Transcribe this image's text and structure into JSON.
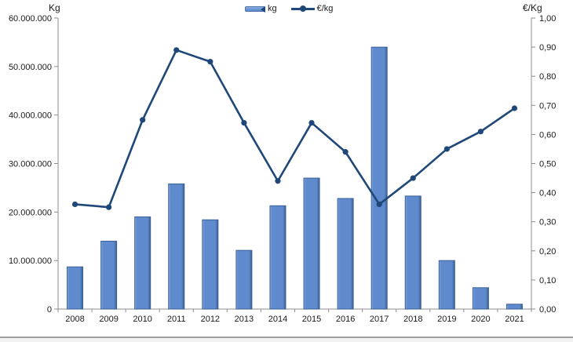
{
  "chart": {
    "left_axis_title": "Kg",
    "right_axis_title": "€/Kg",
    "legend": [
      {
        "label": "kg",
        "icon": "bar-series-swatch-icon"
      },
      {
        "label": "€/kg",
        "icon": "line-series-swatch-icon"
      }
    ],
    "left_tick_labels": [
      "0",
      "10.000.000",
      "20.000.000",
      "30.000.000",
      "40.000.000",
      "50.000.000",
      "60.000.000"
    ],
    "right_tick_labels": [
      "0,00",
      "0,10",
      "0,20",
      "0,30",
      "0,40",
      "0,50",
      "0,60",
      "0,70",
      "0,80",
      "0,90",
      "1,00"
    ],
    "colors": {
      "bar_fill_light": "#8ab0e0",
      "bar_fill": "#5f8bce",
      "bar_fill_dark": "#3c618f",
      "bar_stroke": "#3a5f96",
      "line": "#1f4878",
      "axis": "#8c8c8c",
      "text": "#1a1a1a"
    }
  },
  "chart_data": {
    "type": "bar+line combo",
    "title": "",
    "categories": [
      "2008",
      "2009",
      "2010",
      "2011",
      "2012",
      "2013",
      "2014",
      "2015",
      "2016",
      "2017",
      "2018",
      "2019",
      "2020",
      "2021"
    ],
    "series": [
      {
        "name": "kg",
        "type": "bar",
        "axis": "left",
        "values": [
          8700000,
          14000000,
          19000000,
          25800000,
          18400000,
          12100000,
          21300000,
          27000000,
          22800000,
          54000000,
          23300000,
          10000000,
          4400000,
          1000000
        ]
      },
      {
        "name": "€/kg",
        "type": "line",
        "axis": "right",
        "values": [
          0.36,
          0.35,
          0.65,
          0.89,
          0.85,
          0.64,
          0.44,
          0.64,
          0.54,
          0.36,
          0.45,
          0.55,
          0.61,
          0.69
        ]
      }
    ],
    "left_axis": {
      "label": "Kg",
      "min": 0,
      "max": 60000000,
      "step": 10000000
    },
    "right_axis": {
      "label": "€/Kg",
      "min": 0,
      "max": 1.0,
      "step": 0.1
    },
    "legend_position": "top-center",
    "grid": false
  }
}
